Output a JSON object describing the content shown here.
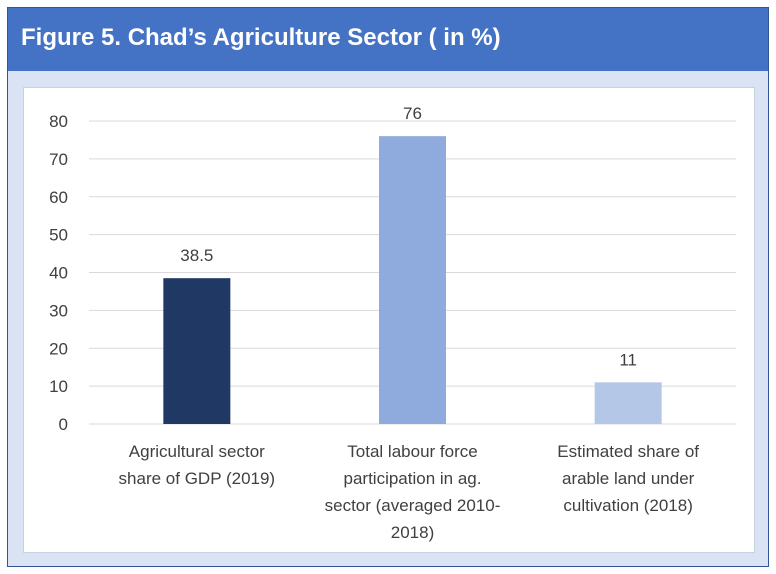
{
  "header": {
    "title": "Figure 5. Chad’s Agriculture Sector ( in %)"
  },
  "chart_data": {
    "type": "bar",
    "title": "Figure 5. Chad’s Agriculture Sector ( in %)",
    "xlabel": "",
    "ylabel": "",
    "ylim": [
      0,
      80
    ],
    "yticks": [
      0,
      10,
      20,
      30,
      40,
      50,
      60,
      70,
      80
    ],
    "grid": true,
    "categories": [
      "Agricultural sector share of GDP (2019)",
      "Total labour force participation in ag. sector (averaged 2010-2018)",
      "Estimated share of arable land under cultivation (2018)"
    ],
    "category_lines": [
      [
        "Agricultural sector",
        "share of GDP (2019)"
      ],
      [
        "Total labour force",
        "participation in ag.",
        "sector (averaged 2010-",
        "2018)"
      ],
      [
        "Estimated share of",
        "arable land under",
        "cultivation (2018)"
      ]
    ],
    "values": [
      38.5,
      76,
      11
    ],
    "data_labels": [
      "38.5",
      "76",
      "11"
    ],
    "bar_colors": [
      "#203864",
      "#8faadc",
      "#b4c7e7"
    ]
  }
}
